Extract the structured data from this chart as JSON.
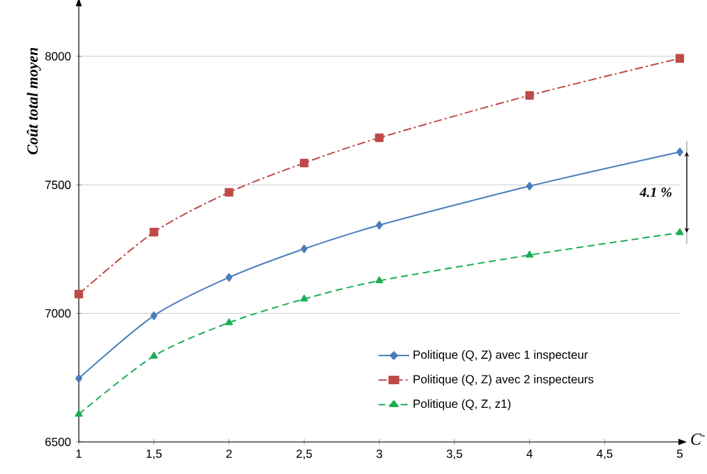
{
  "chart_data": {
    "type": "line",
    "xlabel": "C$^{-}$",
    "ylabel": "Coût total moyen",
    "x": [
      1,
      1.5,
      2,
      2.5,
      3,
      4,
      5
    ],
    "series": [
      {
        "name": "Politique (Q, Z) avec 1 inspecteur",
        "color": "#4a7ebb",
        "marker": "diamond",
        "line_style": "solid",
        "values": [
          6747,
          6991,
          7140,
          7251,
          7343,
          7495,
          7628
        ]
      },
      {
        "name": "Politique (Q, Z) avec 2 inspecteurs",
        "color": "#be4b48",
        "marker": "square",
        "line_style": "dashdot",
        "values": [
          7075,
          7316,
          7471,
          7585,
          7683,
          7848,
          7992
        ]
      },
      {
        "name": "Politique (Q, Z, z1)",
        "color": "#1aae55",
        "marker": "triangle",
        "line_style": "dashed",
        "values": [
          6608,
          6834,
          6964,
          7056,
          7127,
          7227,
          7314
        ]
      }
    ],
    "xlim": [
      1,
      5
    ],
    "ylim": [
      6500,
      8200
    ],
    "xticks": [
      1,
      {
        "value": 1.5,
        "label": "1,5"
      },
      2,
      {
        "value": 2.5,
        "label": "2,5"
      },
      3,
      {
        "value": 3.5,
        "label": "3,5"
      },
      4,
      {
        "value": 4.5,
        "label": "4,5"
      },
      5
    ],
    "yticks": [
      6500,
      7000,
      7500,
      8000
    ],
    "grid": "y",
    "legend": "bottom right",
    "annotations": [
      "4.1 %"
    ]
  }
}
